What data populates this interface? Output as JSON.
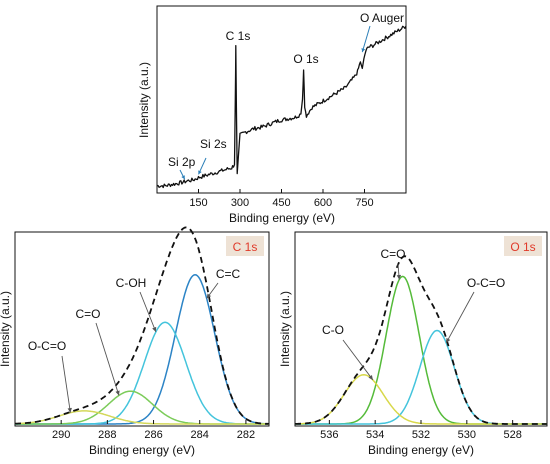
{
  "chart_data": [
    {
      "id": "survey",
      "type": "line",
      "xlabel": "Binding energy (eV)",
      "ylabel": "Intensity (a.u.)",
      "xlim": [
        0,
        900
      ],
      "ylim": [
        0,
        1
      ],
      "xticks": [
        150,
        300,
        450,
        600,
        750
      ],
      "x": [
        0,
        30,
        60,
        90,
        110,
        130,
        150,
        170,
        190,
        210,
        230,
        250,
        270,
        280,
        283,
        285,
        287,
        290,
        300,
        320,
        350,
        380,
        410,
        440,
        470,
        500,
        520,
        526,
        530,
        534,
        540,
        560,
        590,
        620,
        650,
        680,
        700,
        715,
        725,
        735,
        742,
        748,
        755,
        765,
        780,
        800,
        830,
        860,
        900
      ],
      "y": [
        0.02,
        0.02,
        0.03,
        0.04,
        0.05,
        0.055,
        0.07,
        0.08,
        0.09,
        0.1,
        0.11,
        0.12,
        0.13,
        0.15,
        0.55,
        0.88,
        0.5,
        0.1,
        0.33,
        0.35,
        0.37,
        0.38,
        0.4,
        0.42,
        0.43,
        0.44,
        0.46,
        0.55,
        0.73,
        0.5,
        0.45,
        0.5,
        0.53,
        0.56,
        0.59,
        0.62,
        0.66,
        0.69,
        0.72,
        0.78,
        0.74,
        0.8,
        0.85,
        0.87,
        0.88,
        0.9,
        0.93,
        0.96,
        1.0
      ],
      "annotations": [
        {
          "text": "Si 2p",
          "x": 100
        },
        {
          "text": "Si 2s",
          "x": 150
        },
        {
          "text": "C 1s",
          "x": 285
        },
        {
          "text": "O 1s",
          "x": 530
        },
        {
          "text": "O Auger",
          "x": 740
        }
      ]
    },
    {
      "id": "c1s",
      "type": "line",
      "badge": "C 1s",
      "xlabel": "Binding energy (eV)",
      "ylabel": "Intensity (a.u.)",
      "xlim": [
        292,
        281
      ],
      "ylim": [
        0,
        1
      ],
      "xticks": [
        290,
        288,
        286,
        284,
        282
      ],
      "envelope": {
        "style": "dashed",
        "color": "#111111"
      },
      "series": [
        {
          "name": "C=C",
          "center": 284.2,
          "height": 0.91,
          "sigma": 0.85,
          "color": "#2c84c6"
        },
        {
          "name": "C-OH",
          "center": 285.5,
          "height": 0.62,
          "sigma": 0.9,
          "color": "#44c4dc"
        },
        {
          "name": "C=O",
          "center": 287.0,
          "height": 0.2,
          "sigma": 0.95,
          "color": "#7ccc5a"
        },
        {
          "name": "O-C=O",
          "center": 289.0,
          "height": 0.08,
          "sigma": 1.1,
          "color": "#d4d85a"
        }
      ]
    },
    {
      "id": "o1s",
      "type": "line",
      "badge": "O 1s",
      "xlabel": "Binding energy (eV)",
      "ylabel": "Intensity (a.u.)",
      "xlim": [
        537.5,
        526.5
      ],
      "ylim": [
        0,
        1
      ],
      "xticks": [
        536,
        534,
        532,
        530,
        528
      ],
      "envelope": {
        "style": "dashed",
        "color": "#111111"
      },
      "series": [
        {
          "name": "C=O",
          "center": 532.8,
          "height": 0.9,
          "sigma": 0.72,
          "color": "#55bb3a"
        },
        {
          "name": "O-C=O",
          "center": 531.3,
          "height": 0.57,
          "sigma": 0.75,
          "color": "#44c4dc"
        },
        {
          "name": "C-O",
          "center": 534.5,
          "height": 0.3,
          "sigma": 0.85,
          "color": "#d8d84a"
        }
      ]
    }
  ],
  "colors": {
    "badge_bg": "#eee2d5",
    "badge_text": "#e03a2a",
    "axis": "#111111",
    "survey_line": "#111111"
  }
}
